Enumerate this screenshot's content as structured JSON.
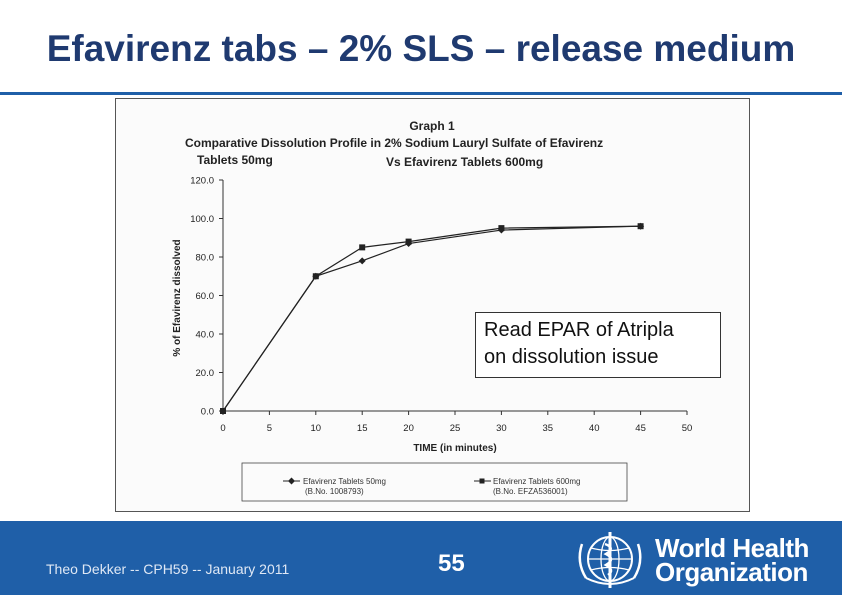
{
  "slide": {
    "title": "Efavirenz tabs – 2% SLS – release medium",
    "callout_line1": "Read EPAR of Atripla",
    "callout_line2": "on dissolution issue",
    "footer_text": "Theo Dekker -- CPH59 -- January 2011",
    "page_number": "55",
    "logo_line1": "World Health",
    "logo_line2": "Organization"
  },
  "colors": {
    "title": "#1f3a70",
    "rule": "#1f5fa8",
    "footer_bg": "#1f5fa8"
  },
  "chart_data": {
    "type": "line",
    "graph_label": "Graph 1",
    "title_line1": "Comparative Dissolution Profile in 2% Sodium Lauryl Sulfate of  Efavirenz",
    "title_line2a": "Tablets 50mg",
    "title_line2b": "Vs Efavirenz Tablets 600mg",
    "xlabel": "TIME (in minutes)",
    "ylabel": "% of Efavirenz dissolved",
    "xlim": [
      0,
      50
    ],
    "ylim": [
      0,
      120
    ],
    "x_ticks": [
      "0",
      "5",
      "10",
      "15",
      "20",
      "25",
      "30",
      "35",
      "40",
      "45",
      "50"
    ],
    "y_ticks": [
      "0.0",
      "20.0",
      "40.0",
      "60.0",
      "80.0",
      "100.0",
      "120.0"
    ],
    "series": [
      {
        "name": "Efavirenz Tablets 50mg",
        "batch": "(B.No. 1008793)",
        "marker": "diamond",
        "x": [
          0,
          10,
          15,
          20,
          30,
          45
        ],
        "y": [
          0,
          70,
          78,
          87,
          94,
          96
        ]
      },
      {
        "name": "Efavirenz Tablets 600mg",
        "batch": "(B.No. EFZA536001)",
        "marker": "square",
        "x": [
          0,
          10,
          15,
          20,
          30,
          45
        ],
        "y": [
          0,
          70,
          85,
          88,
          95,
          96
        ]
      }
    ],
    "grid": false,
    "legend_position": "bottom"
  }
}
